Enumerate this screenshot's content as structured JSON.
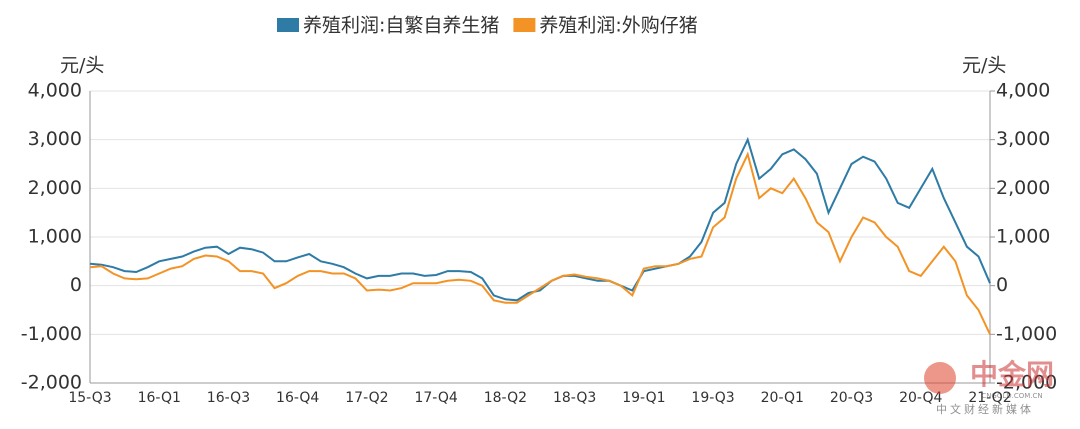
{
  "chart_data": {
    "type": "line",
    "y_label": "元/头",
    "y2_label": "元/头",
    "categories": [
      "15-Q3",
      null,
      null,
      null,
      null,
      null,
      "16-Q1",
      null,
      null,
      null,
      null,
      null,
      "16-Q3",
      null,
      null,
      null,
      null,
      null,
      "16-Q4",
      null,
      null,
      null,
      null,
      null,
      "17-Q2",
      null,
      null,
      null,
      null,
      null,
      "17-Q4",
      null,
      null,
      null,
      null,
      null,
      "18-Q2",
      null,
      null,
      null,
      null,
      null,
      "18-Q3",
      null,
      null,
      null,
      null,
      null,
      "19-Q1",
      null,
      null,
      null,
      null,
      null,
      "19-Q3",
      null,
      null,
      null,
      null,
      null,
      "20-Q1",
      null,
      null,
      null,
      null,
      null,
      "20-Q3",
      null,
      null,
      null,
      null,
      null,
      "20-Q4",
      null,
      null,
      null,
      null,
      null,
      "21-Q2"
    ],
    "series": [
      {
        "name": "养殖利润:自繁自养生猪",
        "color": "#2e7ba6",
        "values": [
          450,
          430,
          380,
          300,
          280,
          380,
          500,
          550,
          600,
          700,
          780,
          800,
          650,
          780,
          750,
          680,
          500,
          500,
          580,
          650,
          500,
          450,
          380,
          250,
          150,
          200,
          200,
          250,
          250,
          200,
          220,
          300,
          300,
          280,
          150,
          -200,
          -280,
          -300,
          -150,
          -100,
          100,
          200,
          200,
          150,
          100,
          100,
          0,
          -100,
          300,
          350,
          400,
          450,
          600,
          900,
          1500,
          1700,
          2500,
          3000,
          2200,
          2400,
          2700,
          2800,
          2600,
          2300,
          1500,
          2000,
          2500,
          2650,
          2550,
          2200,
          1700,
          1600,
          2000,
          2400,
          1800,
          1300,
          800,
          600,
          50
        ]
      },
      {
        "name": "养殖利润:外购仔猪",
        "color": "#f39325",
        "axis": "y2",
        "values": [
          380,
          400,
          250,
          150,
          130,
          150,
          250,
          350,
          400,
          550,
          620,
          600,
          500,
          300,
          300,
          250,
          -50,
          50,
          200,
          300,
          300,
          250,
          250,
          150,
          -100,
          -80,
          -100,
          -50,
          50,
          50,
          50,
          100,
          120,
          100,
          0,
          -300,
          -350,
          -350,
          -200,
          -50,
          100,
          200,
          230,
          180,
          150,
          100,
          0,
          -200,
          350,
          400,
          400,
          450,
          550,
          600,
          1200,
          1400,
          2200,
          2700,
          1800,
          2000,
          1900,
          2200,
          1800,
          1300,
          1100,
          500,
          1000,
          1400,
          1300,
          1000,
          800,
          300,
          200,
          500,
          800,
          500,
          -200,
          -500,
          -1000
        ]
      }
    ],
    "ylim": [
      -2000,
      4000
    ],
    "yticks": [
      {
        "value": -2000,
        "label": "-2,000"
      },
      {
        "value": -1000,
        "label": "-1,000"
      },
      0,
      {
        "value": 1000,
        "label": "1,000"
      },
      {
        "value": 2000,
        "label": "2,000"
      },
      {
        "value": 3000,
        "label": "3,000"
      },
      {
        "value": 4000,
        "label": "4,000"
      }
    ],
    "y2lim": [
      -2000,
      4000
    ],
    "y2ticks": [
      {
        "value": -2000,
        "label": "-2,000"
      },
      {
        "value": -1000,
        "label": "-1,000"
      },
      0,
      {
        "value": 1000,
        "label": "1,000"
      },
      {
        "value": 2000,
        "label": "2,000"
      },
      {
        "value": 3000,
        "label": "3,000"
      },
      {
        "value": 4000,
        "label": "4,000"
      }
    ],
    "grid": true,
    "legend": "top",
    "watermark": {
      "name": "中金网",
      "url": "CNGOLD.COM.CN",
      "slogan": "中文财经新媒体"
    }
  }
}
